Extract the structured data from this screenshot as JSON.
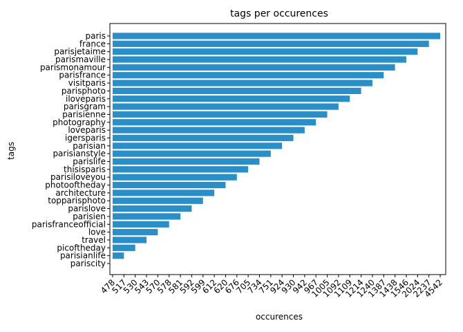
{
  "chart_data": {
    "type": "barh",
    "title": "tags per occurences",
    "x_label": "occurences",
    "y_label": "tags",
    "categories": [
      "pariscity",
      "parisianlife",
      "picoftheday",
      "travel",
      "love",
      "parisfranceofficial",
      "parisien",
      "parislove",
      "topparisphoto",
      "architecture",
      "photooftheday",
      "parisiloveyou",
      "thisisparis",
      "parislife",
      "parisianstyle",
      "parisian",
      "igersparis",
      "loveparis",
      "photography",
      "parisienne",
      "parisgram",
      "iloveparis",
      "parisphoto",
      "visitparis",
      "parisfrance",
      "parismonamour",
      "parismaville",
      "parisjetaime",
      "france",
      "paris"
    ],
    "values": [
      478,
      517,
      530,
      543,
      570,
      578,
      581,
      592,
      599,
      612,
      620,
      676,
      705,
      734,
      751,
      924,
      930,
      942,
      967,
      1005,
      1092,
      1109,
      1214,
      1240,
      1387,
      1438,
      1546,
      2024,
      2237,
      4542
    ],
    "x_axis": "categorical",
    "color": "#2a8fc6"
  }
}
